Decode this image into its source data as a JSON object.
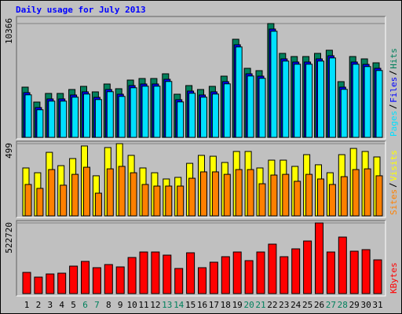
{
  "title": "Daily usage for July 2013",
  "chart_data": [
    {
      "type": "bar",
      "ylim": [
        0,
        10366
      ],
      "yticks": [
        10366
      ],
      "series": [
        {
          "name": "Hits",
          "color": "#00805c",
          "values": [
            4575,
            3217,
            4003,
            4003,
            4361,
            4647,
            4146,
            4861,
            4432,
            5219,
            5362,
            5362,
            5791,
            3932,
            4718,
            4361,
            4647,
            5576,
            8936,
            6291,
            6077,
            10366,
            7649,
            7363,
            7363,
            7649,
            7935,
            5076,
            7363,
            7149,
            6791
          ]
        },
        {
          "name": "Files",
          "color": "#0000ff",
          "values": [
            4075,
            2717,
            3503,
            3503,
            3861,
            4147,
            3646,
            4361,
            3932,
            4719,
            4862,
            4862,
            5291,
            3432,
            4218,
            3861,
            4147,
            5076,
            8436,
            5791,
            5577,
            9866,
            7149,
            6863,
            6863,
            7149,
            7435,
            4576,
            6863,
            6649,
            6291
          ]
        },
        {
          "name": "Pages",
          "color": "#00e0ff",
          "values": [
            3875,
            2517,
            3303,
            3303,
            3661,
            3947,
            3446,
            4161,
            3732,
            4519,
            4662,
            4662,
            5091,
            3232,
            4018,
            3661,
            3947,
            4876,
            8236,
            5591,
            5377,
            9666,
            6949,
            6663,
            6663,
            6949,
            7235,
            4376,
            6663,
            6449,
            6091
          ]
        }
      ]
    },
    {
      "type": "bar",
      "ylim": [
        0,
        499
      ],
      "yticks": [
        499
      ],
      "series": [
        {
          "name": "Visits",
          "color": "#ffff00",
          "values": [
            331,
            298,
            439,
            347,
            396,
            483,
            277,
            472,
            499,
            418,
            331,
            298,
            255,
            266,
            363,
            418,
            412,
            369,
            445,
            445,
            331,
            385,
            385,
            342,
            423,
            353,
            298,
            423,
            466,
            445,
            407
          ]
        },
        {
          "name": "Sites",
          "color": "#ff8000",
          "values": [
            217,
            190,
            320,
            212,
            287,
            336,
            157,
            325,
            342,
            298,
            217,
            206,
            206,
            206,
            260,
            304,
            304,
            287,
            320,
            320,
            222,
            282,
            287,
            239,
            287,
            255,
            217,
            271,
            320,
            325,
            277
          ]
        }
      ]
    },
    {
      "type": "bar",
      "ylim": [
        0,
        522720
      ],
      "yticks": [
        522720
      ],
      "categories": [
        "1",
        "2",
        "3",
        "4",
        "5",
        "6",
        "7",
        "8",
        "9",
        "10",
        "11",
        "12",
        "13",
        "14",
        "15",
        "16",
        "17",
        "18",
        "19",
        "20",
        "21",
        "22",
        "23",
        "24",
        "25",
        "26",
        "27",
        "28",
        "29",
        "30",
        "31"
      ],
      "category_colors": [
        "#000000",
        "#000000",
        "#000000",
        "#000000",
        "#000000",
        "#00805c",
        "#00805c",
        "#000000",
        "#000000",
        "#000000",
        "#000000",
        "#000000",
        "#00805c",
        "#00805c",
        "#000000",
        "#000000",
        "#000000",
        "#000000",
        "#000000",
        "#00805c",
        "#00805c",
        "#000000",
        "#000000",
        "#000000",
        "#000000",
        "#000000",
        "#00805c",
        "#00805c",
        "#000000",
        "#000000",
        "#000000"
      ],
      "series": [
        {
          "name": "KBytes",
          "color": "#ff0000",
          "values": [
            156816,
            121968,
            145200,
            151008,
            203280,
            238128,
            191664,
            214896,
            197472,
            267168,
            307824,
            307824,
            284592,
            185856,
            302016,
            191664,
            232320,
            272976,
            307824,
            243936,
            307824,
            365904,
            272976,
            331056,
            389136,
            522720,
            307824,
            418176,
            313632,
            325248,
            249744
          ]
        }
      ]
    }
  ]
}
